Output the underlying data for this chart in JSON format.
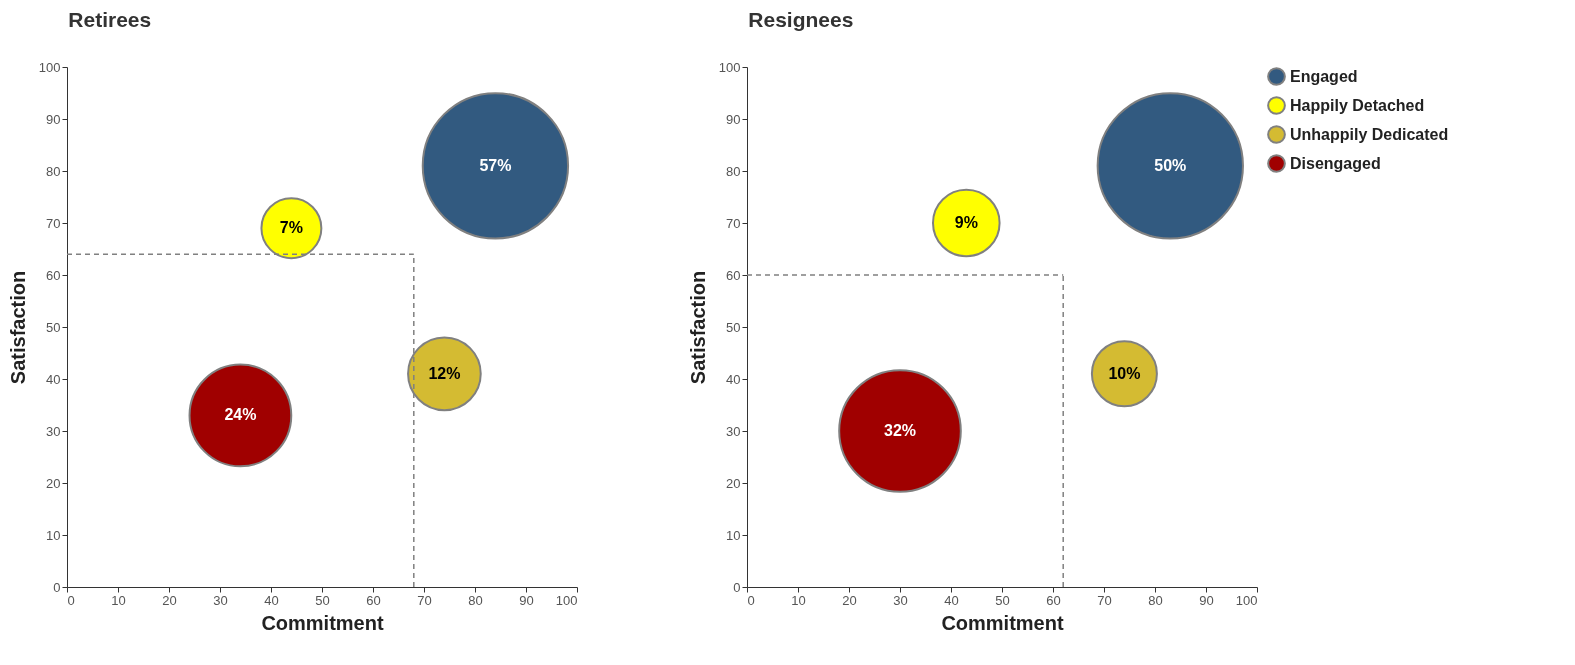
{
  "chart_data": [
    {
      "type": "bubble",
      "title": "Retirees",
      "xlabel": "Commitment",
      "ylabel": "Satisfaction",
      "xlim": [
        0,
        100
      ],
      "ylim": [
        0,
        100
      ],
      "xticks": [
        0,
        10,
        20,
        30,
        40,
        50,
        60,
        70,
        80,
        90,
        100
      ],
      "yticks": [
        0,
        10,
        20,
        30,
        40,
        50,
        60,
        70,
        80,
        90,
        100
      ],
      "grid": false,
      "series": [
        {
          "color": "#325a80",
          "x": [
            84
          ],
          "values": [
            81
          ],
          "sizes": [
            1
          ]
        },
        {
          "color": "#ffff00",
          "x": [
            44
          ],
          "values": [
            69
          ],
          "sizes": [
            0.17
          ]
        },
        {
          "color": "#d4bb32",
          "x": [
            74
          ],
          "values": [
            41
          ],
          "sizes": [
            0.25
          ]
        },
        {
          "color": "#a00000",
          "x": [
            34
          ],
          "values": [
            33
          ],
          "sizes": [
            0.49
          ]
        }
      ],
      "annotations": [
        {
          "text": "57%",
          "x": 84,
          "y": 81
        },
        {
          "text": "7%",
          "x": 44,
          "y": 69
        },
        {
          "text": "12%",
          "x": 74,
          "y": 41
        },
        {
          "text": "24%",
          "x": 34,
          "y": 33
        }
      ],
      "ref_lines": [
        {
          "axis": "x",
          "value": 68,
          "color": "#808080",
          "line_style": "dashed"
        },
        {
          "axis": "y",
          "value": 64,
          "color": "#808080",
          "line_style": "dashed"
        }
      ]
    },
    {
      "type": "bubble",
      "title": "Resignees",
      "xlabel": "Commitment",
      "ylabel": "Satisfaction",
      "xlim": [
        0,
        100
      ],
      "ylim": [
        0,
        100
      ],
      "xticks": [
        0,
        10,
        20,
        30,
        40,
        50,
        60,
        70,
        80,
        90,
        100
      ],
      "yticks": [
        0,
        10,
        20,
        30,
        40,
        50,
        60,
        70,
        80,
        90,
        100
      ],
      "grid": false,
      "legend": "right",
      "series": [
        {
          "name": "Engaged",
          "color": "#325a80",
          "x": [
            83
          ],
          "values": [
            81
          ],
          "sizes": [
            1
          ]
        },
        {
          "name": "Happily Detached",
          "color": "#ffff00",
          "x": [
            43
          ],
          "values": [
            70
          ],
          "sizes": [
            0.21
          ]
        },
        {
          "name": "Unhappily Dedicated",
          "color": "#d4bb32",
          "x": [
            74
          ],
          "values": [
            41
          ],
          "sizes": [
            0.2
          ]
        },
        {
          "name": "Disengaged",
          "color": "#a00000",
          "x": [
            30
          ],
          "values": [
            30
          ],
          "sizes": [
            0.7
          ]
        }
      ],
      "annotations": [
        {
          "text": "50%",
          "x": 83,
          "y": 81
        },
        {
          "text": "9%",
          "x": 43,
          "y": 70
        },
        {
          "text": "10%",
          "x": 74,
          "y": 41
        },
        {
          "text": "32%",
          "x": 30,
          "y": 30
        }
      ],
      "ref_lines": [
        {
          "axis": "x",
          "value": 62,
          "color": "#808080",
          "line_style": "dashed"
        },
        {
          "axis": "y",
          "value": 60,
          "color": "#808080",
          "line_style": "dashed"
        }
      ]
    }
  ]
}
